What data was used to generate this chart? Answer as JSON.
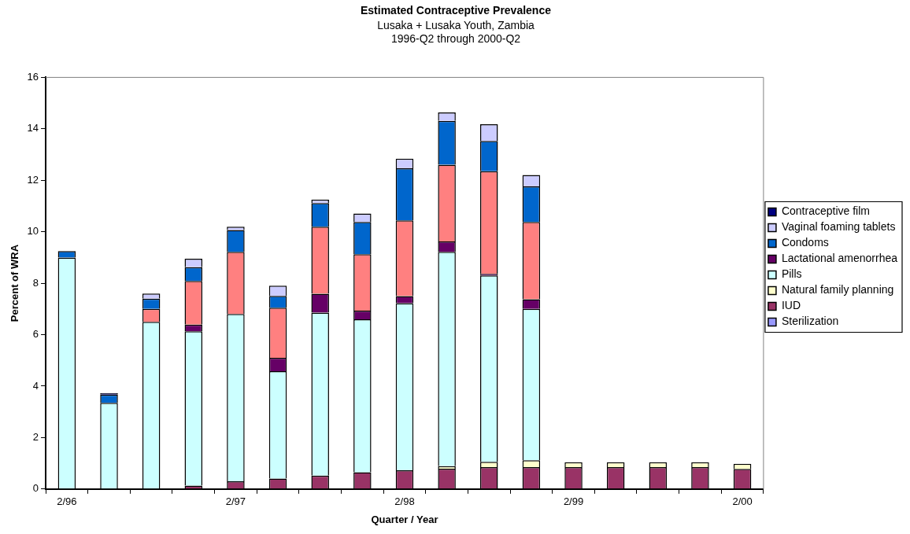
{
  "chart_data": {
    "type": "bar",
    "stacked": true,
    "title": "Estimated Contraceptive Prevalence",
    "subtitle": "Lusaka + Lusaka Youth, Zambia\n1996-Q2 through 2000-Q2",
    "xlabel": "Quarter / Year",
    "ylabel": "Percent of WRA",
    "categories": [
      "2/96",
      null,
      null,
      null,
      "2/97",
      null,
      null,
      null,
      "2/98",
      null,
      null,
      null,
      "2/99",
      null,
      null,
      null,
      "2/00"
    ],
    "ylim": [
      0,
      16
    ],
    "yticks": [
      0,
      2,
      4,
      6,
      8,
      10,
      12,
      14,
      16
    ],
    "grid": false,
    "legend": "right",
    "series": [
      {
        "name": "Sterilization",
        "color": "#9999ff",
        "values": [
          null,
          null,
          null,
          null,
          null,
          null,
          null,
          null,
          null,
          null,
          null,
          null,
          null,
          null,
          null,
          null,
          null
        ]
      },
      {
        "name": "IUD",
        "color": "#993366",
        "values": [
          null,
          null,
          null,
          0.13,
          0.3,
          0.41,
          0.52,
          0.65,
          0.73,
          0.79,
          0.85,
          0.85,
          0.85,
          0.85,
          0.85,
          0.85,
          0.78
        ]
      },
      {
        "name": "Natural family planning",
        "color": "#ffffcc",
        "values": [
          null,
          null,
          null,
          null,
          null,
          null,
          null,
          null,
          null,
          0.1,
          0.21,
          0.27,
          0.19,
          0.19,
          0.19,
          0.19,
          0.2
        ]
      },
      {
        "name": "Pills",
        "color": "#ccffff",
        "values": [
          9.0,
          3.35,
          6.5,
          6.0,
          6.5,
          4.17,
          6.34,
          5.95,
          6.49,
          8.33,
          7.24,
          5.88,
          null,
          null,
          null,
          null,
          null
        ]
      },
      {
        "name": "Lactational amenorrhea",
        "color": "#660066",
        "values": [
          null,
          null,
          null,
          0.26,
          null,
          0.52,
          0.73,
          0.33,
          0.28,
          0.4,
          0.06,
          0.38,
          null,
          null,
          null,
          null,
          null
        ]
      },
      {
        "color": "#ff8080",
        "values": [
          null,
          null,
          0.5,
          1.7,
          2.42,
          1.95,
          2.61,
          2.2,
          2.94,
          2.98,
          3.99,
          3.0,
          null,
          null,
          null,
          null,
          null
        ]
      },
      {
        "name": "Condoms",
        "color": "#0066cc",
        "values": [
          0.25,
          0.32,
          0.4,
          0.53,
          0.85,
          0.46,
          0.91,
          1.25,
          2.03,
          1.71,
          1.18,
          1.38,
          null,
          null,
          null,
          null,
          null
        ]
      },
      {
        "name": "Vaginal foaming tablets",
        "color": "#ccccff",
        "values": [
          null,
          null,
          0.2,
          0.33,
          0.13,
          0.39,
          0.14,
          0.33,
          0.37,
          0.33,
          0.65,
          0.45,
          null,
          null,
          null,
          null,
          null
        ]
      },
      {
        "name": "Contraceptive film",
        "color": "#000080",
        "values": [
          null,
          0.06,
          null,
          null,
          null,
          null,
          null,
          null,
          null,
          null,
          null,
          null,
          null,
          null,
          null,
          null,
          null
        ]
      }
    ]
  }
}
